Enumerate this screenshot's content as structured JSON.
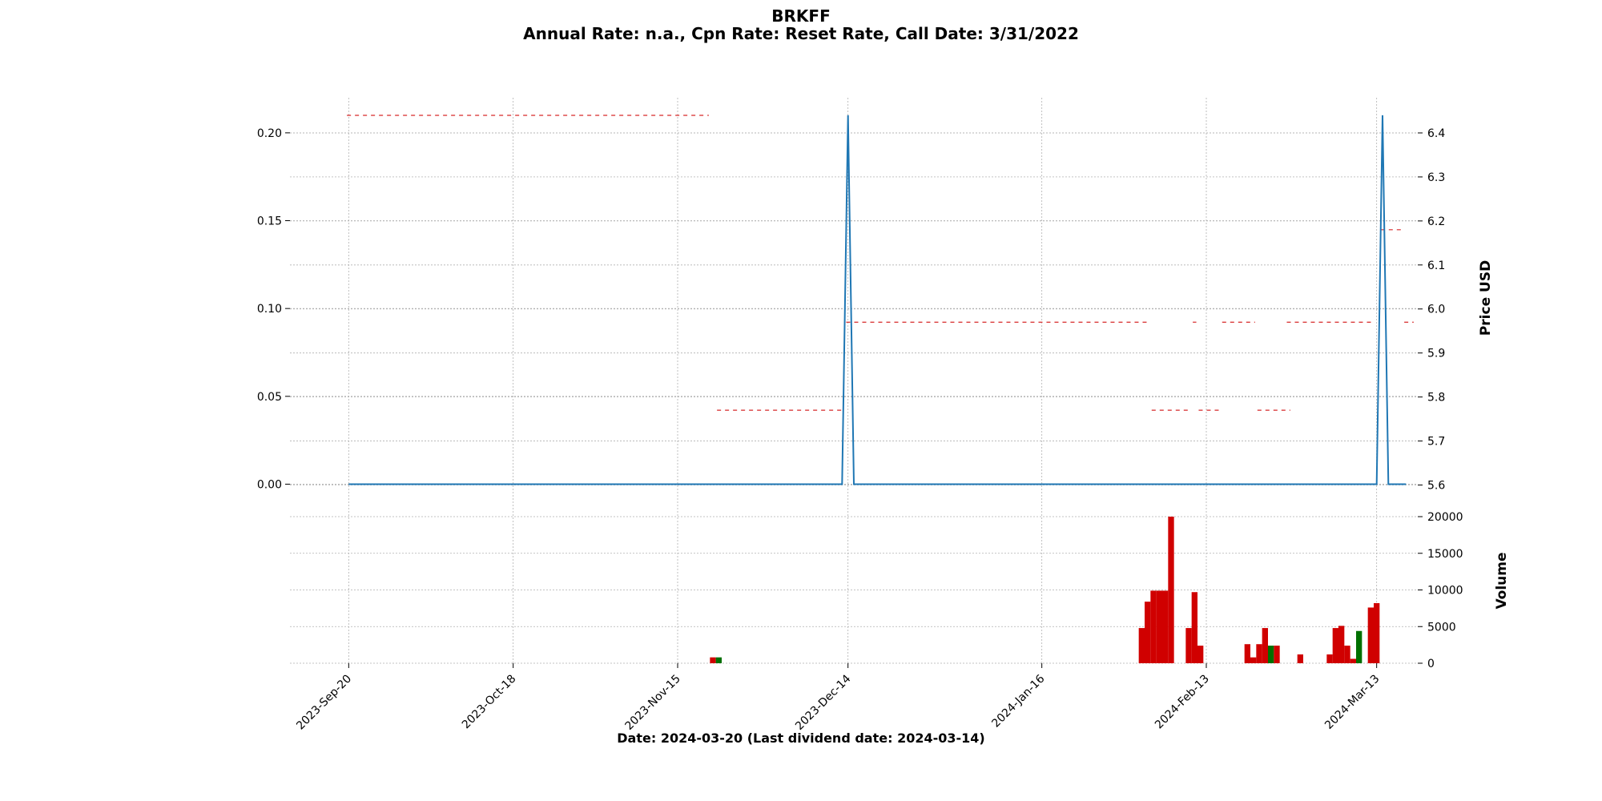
{
  "chart_data": {
    "type": "line",
    "title": "BRKFF",
    "subtitle": "Annual Rate: n.a., Cpn Rate: Reset Rate, Call Date: 3/31/2022",
    "xlabel": "Date: 2024-03-20   (Last dividend date: 2024-03-14)",
    "left_axis": {
      "ticks": [
        "0.00",
        "0.05",
        "0.10",
        "0.15",
        "0.20"
      ],
      "ylim": [
        -0.008,
        0.22
      ]
    },
    "right_axis": {
      "label": "Price USD",
      "ticks": [
        "5.6",
        "5.7",
        "5.8",
        "5.9",
        "6.0",
        "6.1",
        "6.2",
        "6.3",
        "6.4"
      ],
      "ylim": [
        5.57,
        6.48
      ]
    },
    "volume_axis": {
      "label": "Volume",
      "ticks": [
        "0",
        "5000",
        "10000",
        "15000",
        "20000"
      ],
      "ylim": [
        0,
        20000
      ]
    },
    "x_tick_labels": [
      "2023-Sep-20",
      "2023-Oct-18",
      "2023-Nov-15",
      "2023-Dec-14",
      "2024-Jan-16",
      "2024-Feb-13",
      "2024-Mar-13"
    ],
    "x_ticks": [
      "2023-09-20",
      "2023-10-18",
      "2023-11-15",
      "2023-12-14",
      "2024-01-16",
      "2024-02-13",
      "2024-03-13"
    ],
    "x_range": [
      "2023-09-10",
      "2024-03-20"
    ],
    "grid": true,
    "dividend_series": {
      "x": [
        "2023-09-20",
        "2023-12-13",
        "2023-12-14",
        "2023-12-15",
        "2024-03-13",
        "2024-03-14",
        "2024-03-15",
        "2024-03-18"
      ],
      "y": [
        0,
        0,
        0.21,
        0,
        0,
        0.21,
        0,
        0
      ],
      "color": "#1f77b4"
    },
    "price_segments": [
      {
        "start": "2023-09-20",
        "end": "2023-11-20",
        "price": 6.44
      },
      {
        "start": "2023-11-22",
        "end": "2023-12-13",
        "price": 5.77
      },
      {
        "start": "2023-12-14",
        "end": "2024-02-03",
        "price": 5.97
      },
      {
        "start": "2024-02-04",
        "end": "2024-02-10",
        "price": 5.77
      },
      {
        "start": "2024-02-11",
        "end": "2024-02-11",
        "price": 5.97
      },
      {
        "start": "2024-02-12",
        "end": "2024-02-15",
        "price": 5.77
      },
      {
        "start": "2024-02-16",
        "end": "2024-02-21",
        "price": 5.97
      },
      {
        "start": "2024-02-22",
        "end": "2024-02-27",
        "price": 5.77
      },
      {
        "start": "2024-02-27",
        "end": "2024-03-12",
        "price": 5.97
      },
      {
        "start": "2024-03-14",
        "end": "2024-03-17",
        "price": 6.18
      },
      {
        "start": "2024-03-18",
        "end": "2024-03-19",
        "price": 5.97
      }
    ],
    "price_color": "#d62728",
    "volume_bars": [
      {
        "date": "2023-11-21",
        "volume": 800,
        "color": "#d00000"
      },
      {
        "date": "2023-11-22",
        "volume": 800,
        "color": "#007000"
      },
      {
        "date": "2024-02-02",
        "volume": 4800,
        "color": "#d00000"
      },
      {
        "date": "2024-02-03",
        "volume": 8400,
        "color": "#d00000"
      },
      {
        "date": "2024-02-04",
        "volume": 9900,
        "color": "#d00000"
      },
      {
        "date": "2024-02-05",
        "volume": 9900,
        "color": "#d00000"
      },
      {
        "date": "2024-02-06",
        "volume": 9900,
        "color": "#d00000"
      },
      {
        "date": "2024-02-07",
        "volume": 20000,
        "color": "#d00000"
      },
      {
        "date": "2024-02-10",
        "volume": 4800,
        "color": "#d00000"
      },
      {
        "date": "2024-02-11",
        "volume": 9700,
        "color": "#d00000"
      },
      {
        "date": "2024-02-12",
        "volume": 2400,
        "color": "#d00000"
      },
      {
        "date": "2024-02-20",
        "volume": 2600,
        "color": "#d00000"
      },
      {
        "date": "2024-02-21",
        "volume": 800,
        "color": "#d00000"
      },
      {
        "date": "2024-02-22",
        "volume": 2600,
        "color": "#d00000"
      },
      {
        "date": "2024-02-23",
        "volume": 4800,
        "color": "#d00000"
      },
      {
        "date": "2024-02-24",
        "volume": 2400,
        "color": "#007000"
      },
      {
        "date": "2024-02-25",
        "volume": 2400,
        "color": "#d00000"
      },
      {
        "date": "2024-02-29",
        "volume": 1200,
        "color": "#d00000"
      },
      {
        "date": "2024-03-05",
        "volume": 1200,
        "color": "#d00000"
      },
      {
        "date": "2024-03-06",
        "volume": 4800,
        "color": "#d00000"
      },
      {
        "date": "2024-03-07",
        "volume": 5100,
        "color": "#d00000"
      },
      {
        "date": "2024-03-08",
        "volume": 2400,
        "color": "#d00000"
      },
      {
        "date": "2024-03-09",
        "volume": 600,
        "color": "#d00000"
      },
      {
        "date": "2024-03-10",
        "volume": 4400,
        "color": "#007000"
      },
      {
        "date": "2024-03-12",
        "volume": 7600,
        "color": "#d00000"
      },
      {
        "date": "2024-03-13",
        "volume": 8200,
        "color": "#d00000"
      }
    ]
  }
}
